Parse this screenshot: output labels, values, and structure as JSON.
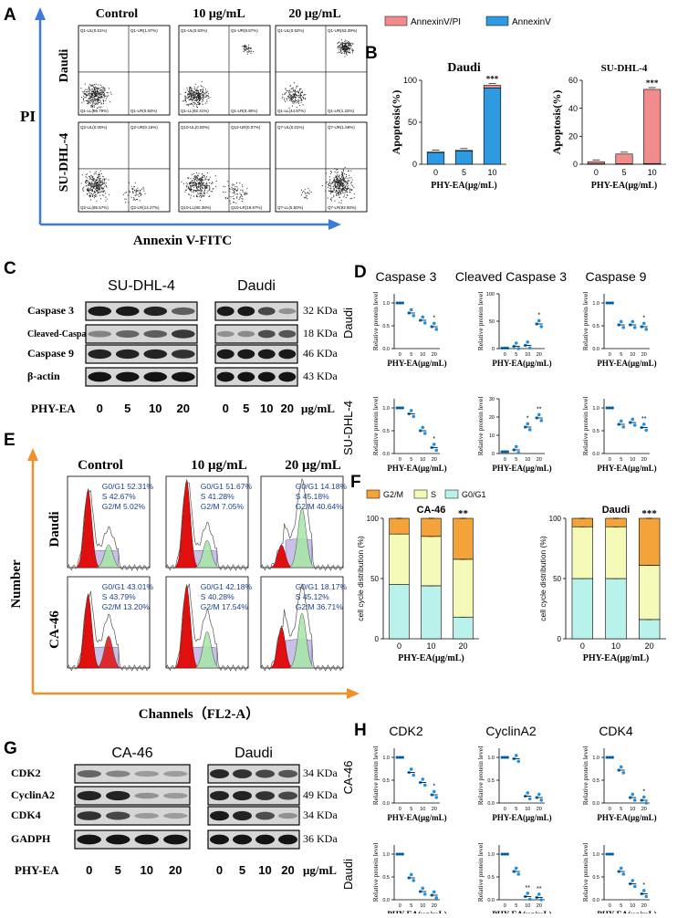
{
  "panels": {
    "A": {
      "letter": "A",
      "col_titles": [
        "Control",
        "10 μg/mL",
        "20 μg/mL"
      ],
      "row_labels": [
        "Daudi",
        "SU-DHL-4"
      ],
      "y_label": "PI",
      "x_label": "Annexin V-FITC",
      "quadrants": [
        [
          [
            "Q1-UL(0.51%)",
            "Q1-UR(1.87%)",
            "Q1-LL(96.79%)",
            "Q1-LR(0.83%)"
          ],
          [
            "Q1-UL(0.53%)",
            "Q1-UR(8.57%)",
            "Q1-LL(92.41%)",
            "Q1-LR(0.49%)"
          ],
          [
            "Q1-UL(0.52%)",
            "Q1-UR(53.39%)",
            "Q1-LL(44.87%)",
            "Q1-LR(1.22%)"
          ]
        ],
        [
          [
            "Q2-UL(0.00%)",
            "Q2-UR(0.16%)",
            "Q2-LL(85.57%)",
            "Q2-LR(14.27%)"
          ],
          [
            "Q10-UL(0.00%)",
            "Q10-UR(0.07%)",
            "Q10-LL(80.38%)",
            "Q10-LR(19.67%)"
          ],
          [
            "Q7-UL(0.01%)",
            "Q7-UR(1.59%)",
            "Q7-LL(5.50%)",
            "Q7-LR(92.90%)"
          ]
        ]
      ]
    },
    "B": {
      "letter": "B",
      "legend": [
        "AnnexinV/PI",
        "AnnexinV"
      ],
      "xlabel": "PHY-EA(μg/mL)",
      "ylabel": "Apoptosis(%)"
    },
    "C": {
      "letter": "C",
      "cells": [
        "SU-DHL-4",
        "Daudi"
      ],
      "proteins": [
        "Caspase 3",
        "Cleaved-Caspase 3",
        "Caspase 9",
        "β-actin"
      ],
      "sizes": [
        "32 KDa",
        "18 KDa",
        "46 KDa",
        "43 KDa"
      ],
      "treatment": "PHY-EA",
      "doses": [
        "0",
        "5",
        "10",
        "20"
      ],
      "unit": "μg/mL"
    },
    "D": {
      "letter": "D",
      "titles": [
        "Caspase 3",
        "Cleaved Caspase 3",
        "Caspase 9"
      ],
      "rows": [
        "Daudi",
        "SU-DHL-4"
      ],
      "ylabel": "Relative protein level",
      "xlabel": "PHY-EA(μg/mL)"
    },
    "E": {
      "letter": "E",
      "col_titles": [
        "Control",
        "10 μg/mL",
        "20 μg/mL"
      ],
      "row_labels": [
        "Daudi",
        "CA-46"
      ],
      "y_label": "Number",
      "x_label": "Channels（FL2-A）",
      "stats": [
        [
          [
            "G0/G1 52.31%",
            "S 42.67%",
            "G2/M 5.02%"
          ],
          [
            "G0/G1 51.67%",
            "S 41.28%",
            "G2/M 7.05%"
          ],
          [
            "G0/G1 14.18%",
            "S 45.18%",
            "G2/M 40.64%"
          ]
        ],
        [
          [
            "G0/G1 43.01%",
            "S 43.79%",
            "G2/M 13.20%"
          ],
          [
            "G0/G1 42.18%",
            "S 40.28%",
            "G2/M 17.54%"
          ],
          [
            "G0/G1 18.17%",
            "S 45.12%",
            "G2/M 36.71%"
          ]
        ]
      ]
    },
    "F": {
      "letter": "F",
      "legend": [
        "G2/M",
        "S",
        "G0/G1"
      ],
      "ylabel": "cell cycle distribution (%)",
      "xlabel": "PHY-EA(μg/mL)"
    },
    "G": {
      "letter": "G",
      "cells": [
        "CA-46",
        "Daudi"
      ],
      "proteins": [
        "CDK2",
        "CyclinA2",
        "CDK4",
        "GADPH"
      ],
      "sizes": [
        "34 KDa",
        "49 KDa",
        "34 KDa",
        "36 KDa"
      ],
      "treatment": "PHY-EA",
      "doses": [
        "0",
        "5",
        "10",
        "20"
      ],
      "unit": "μg/mL"
    },
    "H": {
      "letter": "H",
      "titles": [
        "CDK2",
        "CyclinA2",
        "CDK4"
      ],
      "rows": [
        "CA-46",
        "Daudi"
      ],
      "ylabel": "Relative protein level",
      "xlabel": "PHY-EA(μg/mL)"
    }
  },
  "colors": {
    "annexin_pi": "#f28b8b",
    "annexin": "#2f9ae0",
    "g2m": "#f4a23a",
    "s": "#f4f9b8",
    "g0g1": "#b8f2ea",
    "dot": "#1e90e6",
    "arrow_blue": "#3d7bd8",
    "arrow_orange": "#f0902a",
    "g1_peak": "#e01010",
    "s_phase": "#c8c0e6",
    "g2_peak": "#a6e6a6"
  },
  "chart_data": [
    {
      "id": "B-Daudi",
      "type": "bar",
      "title": "Daudi",
      "categories": [
        "0",
        "5",
        "10"
      ],
      "series": [
        {
          "name": "AnnexinV",
          "values": [
            14,
            16,
            91
          ]
        },
        {
          "name": "AnnexinV/PI",
          "values": [
            0.5,
            0.5,
            3
          ]
        }
      ],
      "stacked": true,
      "xlabel": "PHY-EA(μg/mL)",
      "ylabel": "Apoptosis(%)",
      "ylim": [
        0,
        100
      ],
      "yticks": [
        0,
        50,
        100
      ],
      "annotations": [
        "",
        "",
        "***"
      ]
    },
    {
      "id": "B-SUDHL4",
      "type": "bar",
      "title": "SU-DHL-4",
      "categories": [
        "0",
        "5",
        "10"
      ],
      "series": [
        {
          "name": "AnnexinV",
          "values": [
            0.3,
            0.3,
            0.5
          ]
        },
        {
          "name": "AnnexinV/PI",
          "values": [
            1.5,
            7,
            53
          ]
        }
      ],
      "stacked": true,
      "xlabel": "PHY-EA(μg/mL)",
      "ylabel": "Apoptosis(%)",
      "ylim": [
        0,
        60
      ],
      "yticks": [
        0,
        20,
        40,
        60
      ],
      "annotations": [
        "",
        "",
        "***"
      ]
    },
    {
      "id": "D-Daudi-Caspase3",
      "type": "scatter",
      "categories": [
        "0",
        "5",
        "10",
        "20"
      ],
      "values": [
        1.0,
        0.78,
        0.62,
        0.48
      ],
      "ylim": [
        0,
        1.2
      ],
      "yticks": [
        0,
        0.5,
        1.0
      ],
      "annotations": [
        "",
        "",
        "",
        "*"
      ]
    },
    {
      "id": "D-Daudi-CleavedCaspase3",
      "type": "scatter",
      "categories": [
        "0",
        "5",
        "10",
        "20"
      ],
      "values": [
        1,
        4,
        6,
        45
      ],
      "ylim": [
        0,
        100
      ],
      "yticks": [
        0,
        50,
        100
      ],
      "annotations": [
        "",
        "",
        "",
        "*"
      ]
    },
    {
      "id": "D-Daudi-Caspase9",
      "type": "scatter",
      "categories": [
        "0",
        "5",
        "10",
        "20"
      ],
      "values": [
        1.0,
        0.52,
        0.52,
        0.48
      ],
      "ylim": [
        0,
        1.2
      ],
      "yticks": [
        0,
        0.5,
        1.0
      ],
      "annotations": [
        "",
        "",
        "",
        "*"
      ]
    },
    {
      "id": "D-SUDHL4-Caspase3",
      "type": "scatter",
      "categories": [
        "0",
        "5",
        "10",
        "20"
      ],
      "values": [
        1.0,
        0.87,
        0.5,
        0.13
      ],
      "ylim": [
        0,
        1.2
      ],
      "yticks": [
        0,
        0.5,
        1.0
      ],
      "annotations": [
        "",
        "",
        "",
        "*"
      ]
    },
    {
      "id": "D-SUDHL4-CleavedCaspase3",
      "type": "scatter",
      "categories": [
        "0",
        "5",
        "10",
        "20"
      ],
      "values": [
        1.0,
        2.0,
        14.5,
        19.5
      ],
      "ylim": [
        0,
        30
      ],
      "yticks": [
        0,
        10,
        20,
        30
      ],
      "annotations": [
        "",
        "",
        "*",
        "**"
      ]
    },
    {
      "id": "D-SUDHL4-Caspase9",
      "type": "scatter",
      "categories": [
        "0",
        "5",
        "10",
        "20"
      ],
      "values": [
        1.0,
        0.64,
        0.68,
        0.57
      ],
      "ylim": [
        0,
        1.2
      ],
      "yticks": [
        0,
        0.5,
        1.0
      ],
      "annotations": [
        "",
        "",
        "",
        "**"
      ]
    },
    {
      "id": "F-CA46",
      "type": "bar",
      "title": "CA-46",
      "stacked": true,
      "categories": [
        "0",
        "10",
        "20"
      ],
      "series": [
        {
          "name": "G0/G1",
          "values": [
            45,
            44,
            18
          ]
        },
        {
          "name": "S",
          "values": [
            42,
            41,
            48
          ]
        },
        {
          "name": "G2/M",
          "values": [
            13,
            15,
            34
          ]
        }
      ],
      "xlabel": "PHY-EA(μg/mL)",
      "ylabel": "cell cycle distribution (%)",
      "ylim": [
        0,
        100
      ],
      "yticks": [
        0,
        50,
        100
      ],
      "annotations": [
        "",
        "",
        "**"
      ]
    },
    {
      "id": "F-Daudi",
      "type": "bar",
      "title": "Daudi",
      "stacked": true,
      "categories": [
        "0",
        "10",
        "20"
      ],
      "series": [
        {
          "name": "G0/G1",
          "values": [
            50,
            50,
            16
          ]
        },
        {
          "name": "S",
          "values": [
            43,
            43,
            45
          ]
        },
        {
          "name": "G2/M",
          "values": [
            7,
            7,
            39
          ]
        }
      ],
      "xlabel": "PHY-EA(μg/mL)",
      "ylabel": "cell cycle distribution (%)",
      "ylim": [
        0,
        100
      ],
      "yticks": [
        0,
        50,
        100
      ],
      "annotations": [
        "",
        "",
        "***"
      ]
    },
    {
      "id": "H-CA46-CDK2",
      "type": "scatter",
      "categories": [
        "0",
        "5",
        "10",
        "20"
      ],
      "values": [
        1.0,
        0.67,
        0.45,
        0.18
      ],
      "ylim": [
        0,
        1.2
      ],
      "yticks": [
        0,
        0.5,
        1.0
      ],
      "annotations": [
        "",
        "",
        "",
        "*"
      ]
    },
    {
      "id": "H-CA46-CyclinA2",
      "type": "scatter",
      "categories": [
        "0",
        "5",
        "10",
        "20"
      ],
      "values": [
        1.0,
        0.97,
        0.15,
        0.12
      ],
      "ylim": [
        0,
        1.2
      ],
      "yticks": [
        0,
        0.5,
        1.0
      ],
      "annotations": [
        "",
        "",
        "",
        ""
      ]
    },
    {
      "id": "H-CA46-CDK4",
      "type": "scatter",
      "categories": [
        "0",
        "5",
        "10",
        "20"
      ],
      "values": [
        1.0,
        0.72,
        0.12,
        0.06
      ],
      "ylim": [
        0,
        1.2
      ],
      "yticks": [
        0,
        0.5,
        1.0
      ],
      "annotations": [
        "",
        "",
        "",
        "*"
      ]
    },
    {
      "id": "H-Daudi-CDK2",
      "type": "scatter",
      "categories": [
        "0",
        "5",
        "10",
        "20"
      ],
      "values": [
        1.0,
        0.48,
        0.18,
        0.1
      ],
      "ylim": [
        0,
        1.2
      ],
      "yticks": [
        0,
        0.5,
        1.0
      ],
      "annotations": [
        "",
        "",
        "",
        ""
      ]
    },
    {
      "id": "H-Daudi-CyclinA2",
      "type": "scatter",
      "categories": [
        "0",
        "5",
        "10",
        "20"
      ],
      "values": [
        1.0,
        0.62,
        0.07,
        0.05
      ],
      "ylim": [
        0,
        1.2
      ],
      "yticks": [
        0,
        0.5,
        1.0
      ],
      "annotations": [
        "",
        "",
        "**",
        "**"
      ]
    },
    {
      "id": "H-Daudi-CDK4",
      "type": "scatter",
      "categories": [
        "0",
        "5",
        "10",
        "20"
      ],
      "values": [
        1.0,
        0.62,
        0.35,
        0.13
      ],
      "ylim": [
        0,
        1.2
      ],
      "yticks": [
        0,
        0.5,
        1.0
      ],
      "annotations": [
        "",
        "",
        "",
        "*"
      ]
    }
  ]
}
